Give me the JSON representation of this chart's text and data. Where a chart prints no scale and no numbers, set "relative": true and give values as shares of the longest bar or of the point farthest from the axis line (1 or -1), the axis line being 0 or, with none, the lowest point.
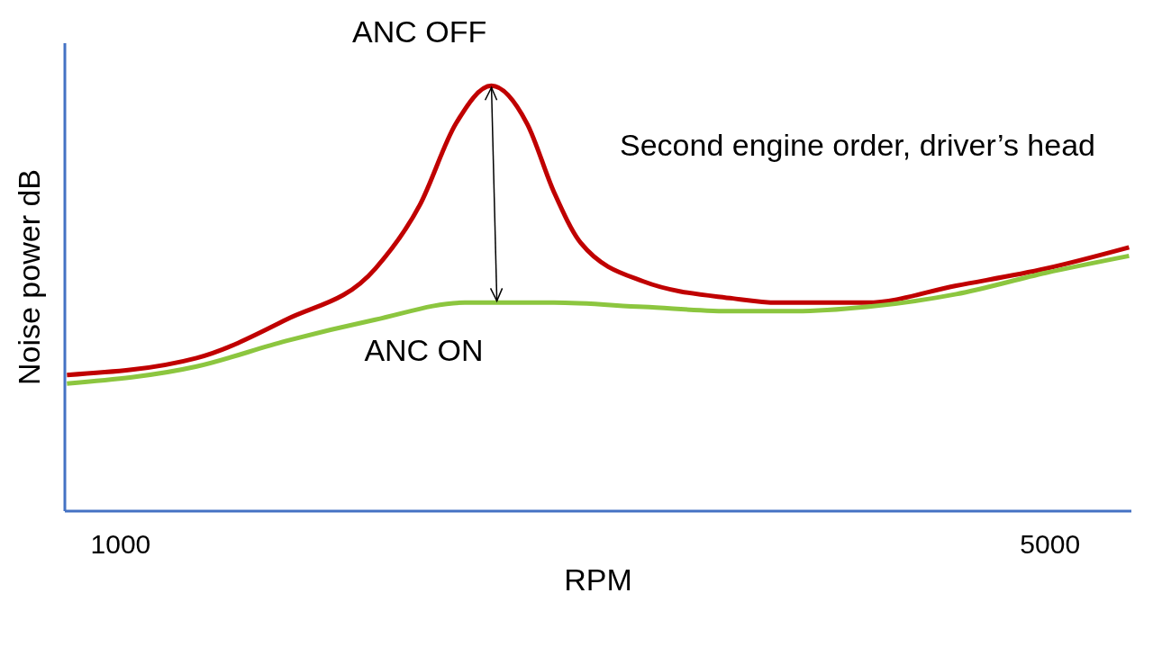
{
  "chart_data": {
    "type": "line",
    "title": "Second engine order, driver’s head",
    "xlabel": "RPM",
    "ylabel": "Noise power dB",
    "relative": true,
    "xlim": [
      760,
      5350
    ],
    "xticks": [
      1000,
      5000
    ],
    "grid": false,
    "legend": false,
    "marker": "none",
    "line_style": "solid",
    "series": [
      {
        "name": "ANC OFF",
        "color": "#c00000",
        "x": [
          769,
          1327,
          1712,
          2096,
          2288,
          2442,
          2596,
          2750,
          2865,
          2981,
          3250,
          3635,
          3827,
          4212,
          4596,
          4981,
          5340
        ],
        "values": [
          0.32,
          0.36,
          0.45,
          0.57,
          0.72,
          0.91,
          1,
          0.91,
          0.75,
          0.63,
          0.54,
          0.5,
          0.49,
          0.49,
          0.53,
          0.57,
          0.62
        ]
      },
      {
        "name": "ANC ON",
        "color": "#8cc63f",
        "x": [
          769,
          1327,
          1712,
          2096,
          2481,
          2615,
          2865,
          3250,
          3635,
          3904,
          4212,
          4596,
          4981,
          5340
        ],
        "values": [
          0.3,
          0.34,
          0.4,
          0.45,
          0.49,
          0.49,
          0.49,
          0.48,
          0.47,
          0.47,
          0.48,
          0.51,
          0.56,
          0.6
        ]
      }
    ]
  }
}
